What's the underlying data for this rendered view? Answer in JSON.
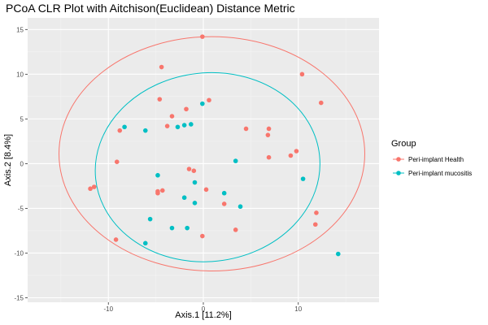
{
  "chart_data": {
    "type": "scatter",
    "title": "PCoA CLR Plot with Aitchison(Euclidean) Distance Metric",
    "xlabel": "Axis.1   [11.2%]",
    "ylabel": "Axis.2   [8.4%]",
    "xlim": [
      -18.5,
      18.5
    ],
    "ylim": [
      -15.5,
      16.3
    ],
    "x_ticks": [
      -10,
      0,
      10
    ],
    "y_ticks": [
      -15,
      -10,
      -5,
      0,
      5,
      10,
      15
    ],
    "x_tick_labels": [
      "-10",
      "0",
      "10"
    ],
    "y_tick_labels": [
      "-15",
      "-10",
      "-5",
      "0",
      "5",
      "10",
      "15"
    ],
    "grid": true,
    "background": "#ebebeb",
    "legend": {
      "title": "Group",
      "position": "right"
    },
    "series": [
      {
        "name": "Peri-implant Health",
        "color": "#f8766d",
        "points": [
          [
            -0.1,
            14.2
          ],
          [
            -4.4,
            10.8
          ],
          [
            10.4,
            10.0
          ],
          [
            12.4,
            6.8
          ],
          [
            -4.6,
            7.2
          ],
          [
            0.6,
            7.1
          ],
          [
            -1.8,
            6.1
          ],
          [
            -3.3,
            5.3
          ],
          [
            -3.8,
            4.2
          ],
          [
            -8.8,
            3.7
          ],
          [
            4.5,
            3.9
          ],
          [
            6.9,
            3.9
          ],
          [
            6.8,
            3.2
          ],
          [
            9.2,
            0.9
          ],
          [
            9.8,
            1.4
          ],
          [
            6.9,
            0.7
          ],
          [
            -9.1,
            0.2
          ],
          [
            -1.5,
            -0.6
          ],
          [
            -1.0,
            -0.8
          ],
          [
            -4.3,
            -3.0
          ],
          [
            -4.8,
            -3.1
          ],
          [
            0.3,
            -2.9
          ],
          [
            -4.8,
            -3.3
          ],
          [
            -11.5,
            -2.6
          ],
          [
            -11.9,
            -2.8
          ],
          [
            2.2,
            -4.5
          ],
          [
            11.9,
            -5.5
          ],
          [
            11.8,
            -6.8
          ],
          [
            3.4,
            -7.4
          ],
          [
            -0.1,
            -8.1
          ],
          [
            -9.2,
            -8.5
          ]
        ]
      },
      {
        "name": "Peri-implant mucositis",
        "color": "#00bfc4",
        "points": [
          [
            -0.1,
            6.7
          ],
          [
            -8.3,
            4.1
          ],
          [
            -6.1,
            3.7
          ],
          [
            -2.7,
            4.1
          ],
          [
            -2.0,
            4.3
          ],
          [
            -1.3,
            4.4
          ],
          [
            3.4,
            0.3
          ],
          [
            10.5,
            -1.7
          ],
          [
            -4.8,
            -1.3
          ],
          [
            -0.9,
            -2.1
          ],
          [
            2.2,
            -3.3
          ],
          [
            -2.0,
            -3.8
          ],
          [
            -0.9,
            -4.4
          ],
          [
            3.9,
            -4.8
          ],
          [
            -5.6,
            -6.2
          ],
          [
            -3.3,
            -7.2
          ],
          [
            -1.7,
            -7.2
          ],
          [
            -6.1,
            -8.9
          ],
          [
            14.2,
            -10.1
          ]
        ]
      }
    ],
    "ellipses": [
      {
        "series": "Peri-implant Health",
        "cx": 0.9,
        "cy": 1.1,
        "rx": 16.1,
        "ry": 13.1,
        "angle_deg": 0
      },
      {
        "series": "Peri-implant mucositis",
        "cx": 0.45,
        "cy": -0.4,
        "rx": 11.85,
        "ry": 10.55,
        "angle_deg": -6
      }
    ]
  }
}
